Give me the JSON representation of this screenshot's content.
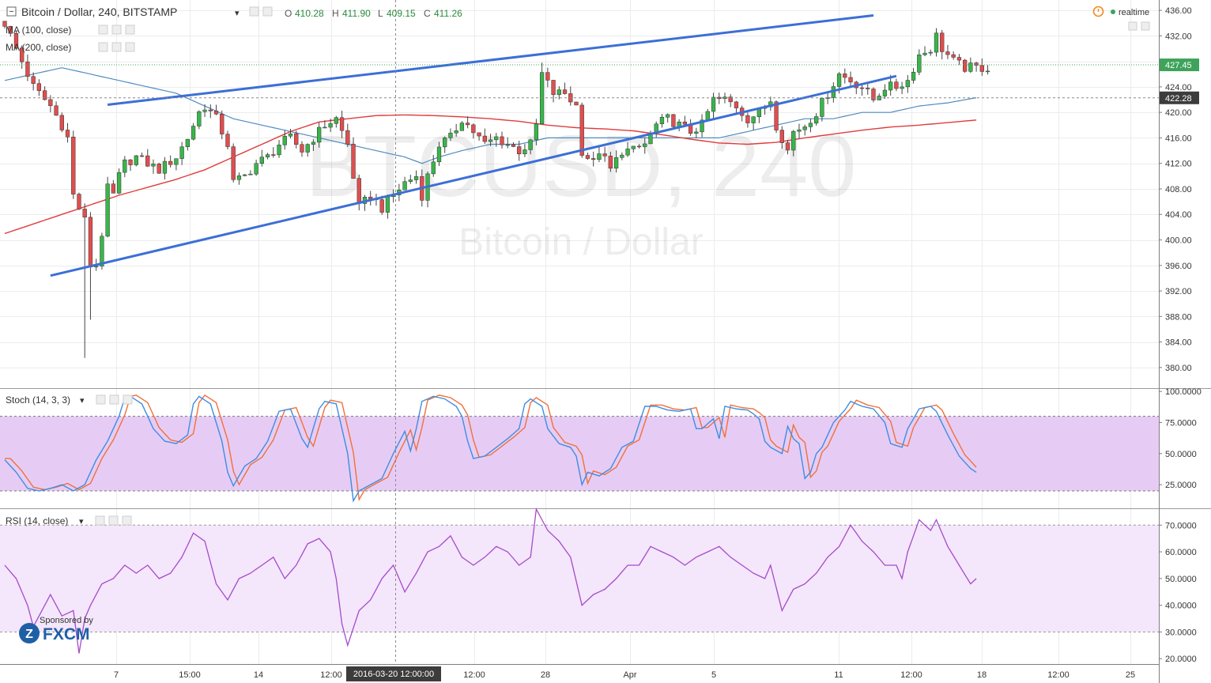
{
  "chart_data": {
    "type": "candlestick",
    "symbol_watermark": "BTCUSD, 240",
    "name_watermark": "Bitcoin / Dollar",
    "header": {
      "title": "Bitcoin / Dollar, 240, BITSTAMP",
      "open_label": "O",
      "open": "410.28",
      "high_label": "H",
      "high": "411.90",
      "low_label": "L",
      "low": "409.15",
      "close_label": "C",
      "close": "411.26"
    },
    "indicators": [
      {
        "name": "MA (100, close)",
        "color": "#4f8bbf"
      },
      {
        "name": "MA (200, close)",
        "color": "#e03c3c"
      }
    ],
    "realtime_label": "realtime",
    "price_axis": {
      "ylim": [
        378,
        437
      ],
      "ticks": [
        "436.00",
        "432.00",
        "428.00",
        "424.00",
        "420.00",
        "416.00",
        "412.00",
        "408.00",
        "404.00",
        "400.00",
        "396.00",
        "392.00",
        "388.00",
        "384.00",
        "380.00"
      ],
      "last_price": "427.45",
      "last_price_color": "#3ea35b",
      "ref_price": "422.28"
    },
    "time_axis": {
      "labels": [
        "7",
        "15:00",
        "14",
        "12:00",
        "12:00",
        "28",
        "Apr",
        "5",
        "11",
        "12:00",
        "18",
        "12:00",
        "25"
      ],
      "crosshair_label": "2016-03-20 12:00:00"
    },
    "channel_lines": [
      {
        "from": [
          18,
          421.2
        ],
        "to": [
          152,
          435.2
        ]
      },
      {
        "from": [
          8,
          394.4
        ],
        "to": [
          156,
          425.7
        ]
      }
    ],
    "stoch": {
      "name": "Stoch (14, 3, 3)",
      "ylim": [
        6,
        102
      ],
      "bands": [
        20,
        80
      ],
      "ticks": [
        "100.0000",
        "75.0000",
        "50.0000",
        "25.0000"
      ],
      "band_color": "#e6ccf5",
      "k_color": "#3f8de0",
      "d_color": "#f0703a"
    },
    "rsi": {
      "name": "RSI (14, close)",
      "ylim": [
        18,
        76
      ],
      "bands": [
        30,
        70
      ],
      "ticks": [
        "70.0000",
        "60.0000",
        "50.0000",
        "40.0000",
        "30.0000",
        "20.0000"
      ],
      "band_color": "#f4e6fb",
      "line_color": "#a54bc9"
    },
    "sponsor": {
      "text": "Sponsored by",
      "brand": "FXCM"
    },
    "candle_colors": {
      "up": "#39b54a",
      "down": "#e04e4e",
      "wick": "#444444"
    }
  }
}
